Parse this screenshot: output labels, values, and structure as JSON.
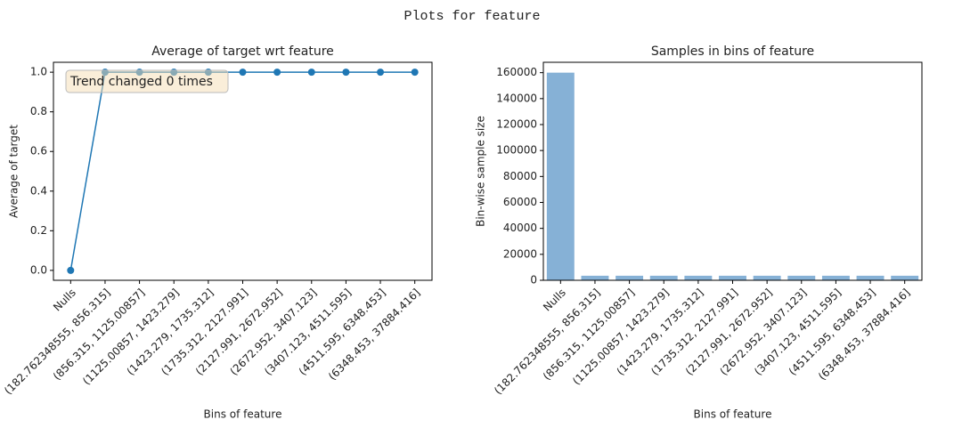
{
  "title": "Plots for feature",
  "chart_data": [
    {
      "type": "line",
      "title": "Average of target wrt feature",
      "x_label": "Bins of feature",
      "y_label": "Average of target",
      "annotation": "Trend changed 0 times",
      "categories": [
        "Nulls",
        "(182.762348555, 856.315]",
        "(856.315, 1125.00857]",
        "(1125.00857, 1423.279]",
        "(1423.279, 1735.312]",
        "(1735.312, 2127.991]",
        "(2127.991, 2672.952]",
        "(2672.952, 3407.123]",
        "(3407.123, 4511.595]",
        "(4511.595, 6348.453]",
        "(6348.453, 37884.416]"
      ],
      "values": [
        0,
        1,
        1,
        1,
        1,
        1,
        1,
        1,
        1,
        1,
        1
      ],
      "color": "#1f77b4",
      "ylim": [
        -0.05,
        1.05
      ],
      "yticks": [
        {
          "value": 0,
          "label": "0.0"
        },
        {
          "value": 0.2,
          "label": "0.2"
        },
        {
          "value": 0.4,
          "label": "0.4"
        },
        {
          "value": 0.6,
          "label": "0.6"
        },
        {
          "value": 0.8,
          "label": "0.8"
        },
        {
          "value": 1,
          "label": "1.0"
        }
      ]
    },
    {
      "type": "bar",
      "title": "Samples in bins of feature",
      "x_label": "Bins of feature",
      "y_label": "Bin-wise sample size",
      "categories": [
        "Nulls",
        "(182.762348555, 856.315]",
        "(856.315, 1125.00857]",
        "(1125.00857, 1423.279]",
        "(1423.279, 1735.312]",
        "(1735.312, 2127.991]",
        "(2127.991, 2672.952]",
        "(2672.952, 3407.123]",
        "(3407.123, 4511.595]",
        "(4511.595, 6348.453]",
        "(6348.453, 37884.416]"
      ],
      "values": [
        160000,
        3500,
        3500,
        3500,
        3500,
        3500,
        3500,
        3500,
        3500,
        3500,
        3500
      ],
      "color": "#86b1d6",
      "ylim": [
        0,
        168000
      ],
      "yticks": [
        0,
        20000,
        40000,
        60000,
        80000,
        100000,
        120000,
        140000,
        160000
      ]
    }
  ]
}
